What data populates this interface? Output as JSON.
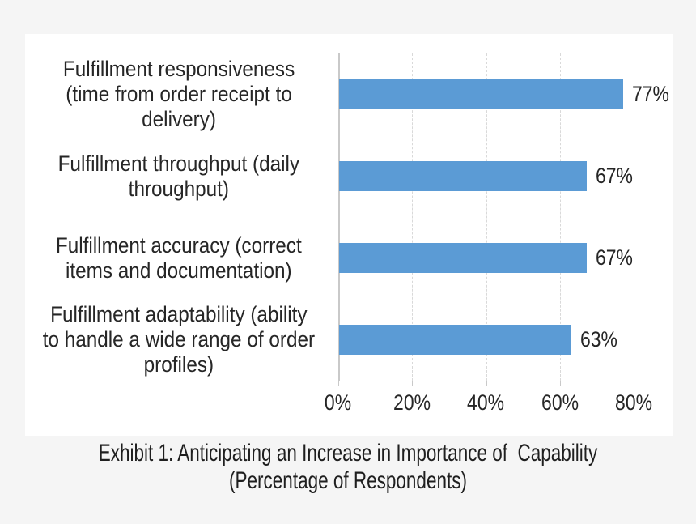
{
  "page": {
    "background": "#f5f5f5",
    "panel_background": "#ffffff"
  },
  "chart_data": {
    "type": "bar",
    "orientation": "horizontal",
    "title": "",
    "xlabel": "",
    "ylabel": "",
    "grid": true,
    "legend": false,
    "bar_color": "#5b9bd5",
    "gridline_color": "#d9d9d9",
    "axis_line_color": "#c9c9c9",
    "categories": [
      "Fulfillment responsiveness (time from order receipt to delivery)",
      "Fulfillment throughput (daily throughput)",
      "Fulfillment accuracy (correct items and documentation)",
      "Fulfillment adaptability (ability to handle a wide range of order profiles)"
    ],
    "categories_wrapped": [
      "Fulfillment responsiveness\n(time from order receipt to\ndelivery)",
      "Fulfillment throughput (daily\nthroughput)",
      "Fulfillment accuracy (correct\nitems and documentation)",
      "Fulfillment adaptability (ability\nto handle a wide range of order\nprofiles)"
    ],
    "values": [
      77,
      67,
      67,
      63
    ],
    "value_labels": [
      "77%",
      "67%",
      "67%",
      "63%"
    ],
    "x_ticks": {
      "labels": [
        "0%",
        "20%",
        "40%",
        "60%",
        "80%"
      ],
      "values": [
        0,
        20,
        40,
        60,
        80
      ]
    },
    "xlim": [
      0,
      90
    ]
  },
  "caption": {
    "line1": "Exhibit 1: Anticipating an Increase in Importance of  Capability",
    "line2": "(Percentage of Respondents)"
  }
}
